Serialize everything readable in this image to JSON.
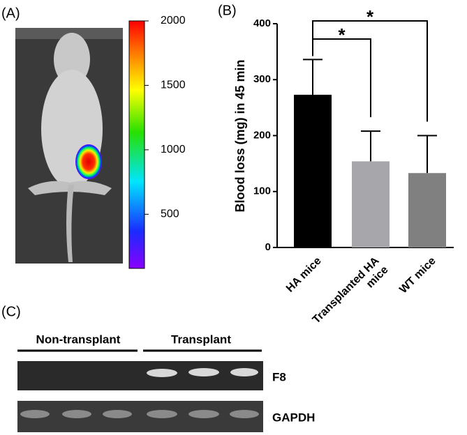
{
  "panels": {
    "a": "(A)",
    "b": "(B)",
    "c": "(C)"
  },
  "colorbar": {
    "lim": [
      80,
      2000
    ],
    "ticks": [
      500,
      1000,
      1500,
      2000
    ]
  },
  "chart_data": {
    "type": "bar",
    "ylabel": "Blood loss (mg) in 45 min",
    "categories": [
      "HA mice",
      "Transplanted HA mice",
      "WT mice"
    ],
    "values": [
      273,
      154,
      133
    ],
    "errors": [
      63,
      54,
      67
    ],
    "colors": [
      "#000000",
      "#a7a7ab",
      "#808080"
    ],
    "ylim": [
      0,
      400
    ],
    "yticks": [
      0,
      100,
      200,
      300,
      400
    ],
    "annotations": [
      {
        "from": 0,
        "to": 1,
        "label": "*"
      },
      {
        "from": 0,
        "to": 2,
        "label": "*"
      }
    ]
  },
  "gel": {
    "groups": [
      "Non-transplant",
      "Transplant"
    ],
    "bands": [
      "F8",
      "GAPDH"
    ]
  }
}
